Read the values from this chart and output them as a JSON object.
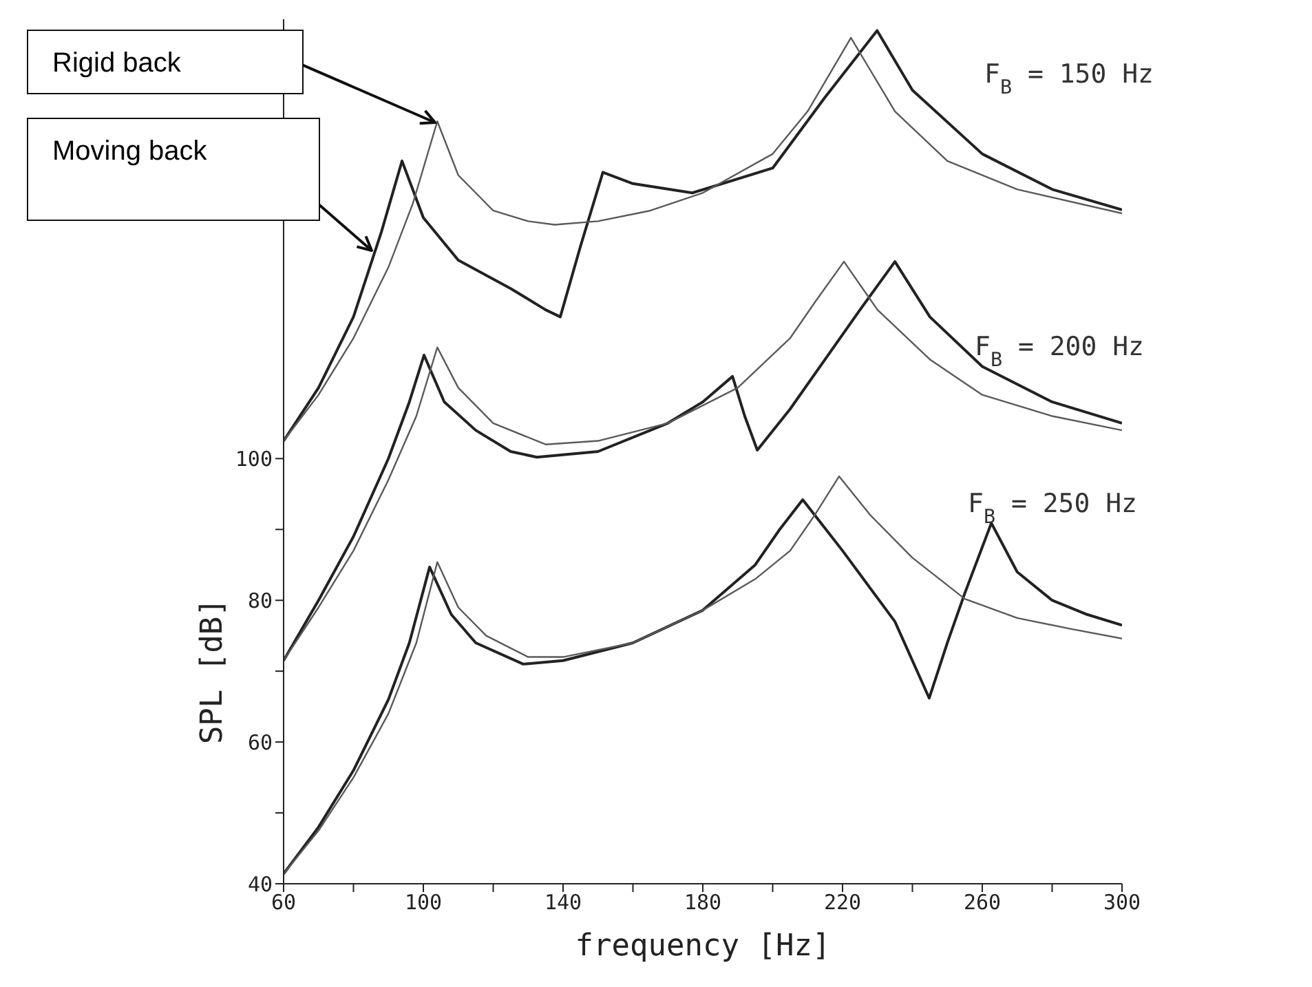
{
  "chart_data": {
    "type": "line",
    "xlabel": "frequency [Hz]",
    "ylabel": "SPL [dB]",
    "xlim": [
      60,
      300
    ],
    "xticks": [
      60,
      {
        "value": 80,
        "label": null
      },
      100,
      {
        "value": 120,
        "label": null
      },
      140,
      {
        "value": 160,
        "label": null
      },
      180,
      {
        "value": 200,
        "label": null
      },
      220,
      {
        "value": 240,
        "label": null
      },
      260,
      {
        "value": 280,
        "label": null
      },
      300
    ],
    "ylim": [
      40,
      162
    ],
    "yticks": [
      40,
      {
        "value": 50,
        "label": null
      },
      60,
      {
        "value": 70,
        "label": null
      },
      80,
      {
        "value": 90,
        "label": null
      },
      100
    ],
    "grid": false,
    "legend": false,
    "marker": "none",
    "line_style": "solid",
    "series": [
      {
        "color": "#222222",
        "x": [
          60,
          70,
          80,
          88,
          93.9,
          100,
          110,
          125,
          135,
          139.2,
          145,
          151.4,
          160,
          177,
          200,
          215,
          229.9,
          240,
          260,
          280,
          300
        ],
        "values": [
          102.5,
          110,
          120,
          132,
          142,
          134,
          128,
          124,
          121,
          120,
          130,
          140.4,
          138.8,
          137.5,
          141,
          151,
          160.4,
          152,
          143,
          138,
          135.1
        ]
      },
      {
        "color": "#5a5a5a",
        "x": [
          60,
          70,
          80,
          90,
          97,
          104,
          110,
          120,
          130,
          137.6,
          150,
          165,
          180,
          200,
          210,
          222.4,
          235,
          250,
          270,
          300
        ],
        "values": [
          102.5,
          109,
          117,
          127,
          136,
          147.6,
          140,
          135,
          133.5,
          133,
          133.5,
          135,
          137.5,
          143,
          149,
          159.4,
          149,
          142,
          138,
          134.6
        ]
      },
      {
        "color": "#222222",
        "x": [
          60,
          70,
          80,
          90,
          96,
          100.2,
          106,
          115,
          125,
          132.5,
          150,
          170,
          180,
          188.5,
          192,
          195.6,
          205,
          215,
          225,
          235,
          245,
          260,
          280,
          300
        ],
        "values": [
          71.5,
          80,
          89,
          100,
          108,
          114.6,
          108,
          104,
          101,
          100.2,
          101,
          105,
          108,
          111.6,
          106,
          101.2,
          107,
          114,
          121,
          127.8,
          120,
          113,
          108,
          105
        ]
      },
      {
        "color": "#5a5a5a",
        "x": [
          60,
          70,
          80,
          90,
          98,
          104,
          110,
          120,
          135,
          150,
          170,
          190,
          205,
          212,
          220.4,
          230,
          245,
          260,
          280,
          300
        ],
        "values": [
          71.5,
          79,
          87,
          97,
          106,
          115.7,
          110,
          105,
          102,
          102.5,
          105,
          110,
          117,
          122,
          127.8,
          121,
          114,
          109,
          106,
          104
        ]
      },
      {
        "color": "#222222",
        "x": [
          60,
          70,
          80,
          90,
          96,
          101.8,
          108,
          115,
          128.6,
          140,
          160,
          180,
          195,
          202,
          208.6,
          220,
          235,
          244.8,
          250,
          255,
          262.6,
          270,
          280,
          290,
          300
        ],
        "values": [
          41.4,
          48,
          56,
          66,
          74,
          84.7,
          78,
          74,
          71,
          71.5,
          74,
          78.6,
          85,
          90,
          94.2,
          87,
          77,
          66.2,
          74,
          81,
          90.9,
          84,
          80,
          78,
          76.5
        ]
      },
      {
        "color": "#5a5a5a",
        "x": [
          60,
          70,
          80,
          90,
          98,
          104,
          110,
          118,
          130,
          140,
          160,
          180,
          195,
          205,
          212,
          219,
          228,
          240,
          255,
          270,
          285,
          300
        ],
        "values": [
          41.4,
          47.5,
          55,
          64,
          74,
          85.4,
          79,
          75,
          72,
          72,
          74,
          78.6,
          83,
          87,
          92,
          97.5,
          92,
          86,
          80.2,
          77.5,
          76,
          74.6
        ]
      }
    ],
    "annotations": [
      "Rigid back",
      "Moving back",
      "F$_{B}$ = 150 Hz",
      "F$_{B}$ = 200 Hz",
      "F$_{B}$ = 250 Hz"
    ]
  }
}
